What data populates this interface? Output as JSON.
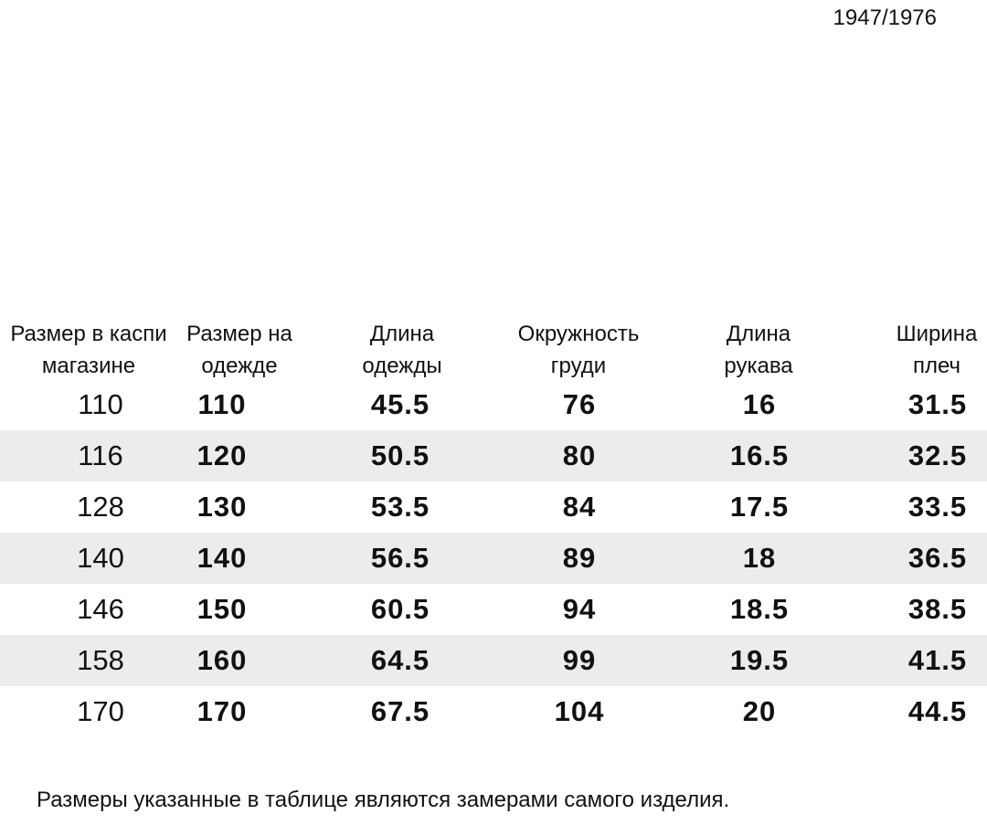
{
  "code": "1947/1976",
  "table": {
    "headers": [
      "Размер в каспи магазине",
      "Размер на одежде",
      "Длина одежды",
      "Окружность груди",
      "Длина рукава",
      "Ширина плеч"
    ],
    "rows": [
      [
        110,
        110,
        45.5,
        76,
        16,
        31.5
      ],
      [
        116,
        120,
        50.5,
        80,
        16.5,
        32.5
      ],
      [
        128,
        130,
        53.5,
        84,
        17.5,
        33.5
      ],
      [
        140,
        140,
        56.5,
        89,
        18,
        36.5
      ],
      [
        146,
        150,
        60.5,
        94,
        18.5,
        38.5
      ],
      [
        158,
        160,
        64.5,
        99,
        19.5,
        41.5
      ],
      [
        170,
        170,
        67.5,
        104,
        20,
        44.5
      ]
    ]
  },
  "note": "Размеры указанные в таблице являются замерами самого изделия."
}
